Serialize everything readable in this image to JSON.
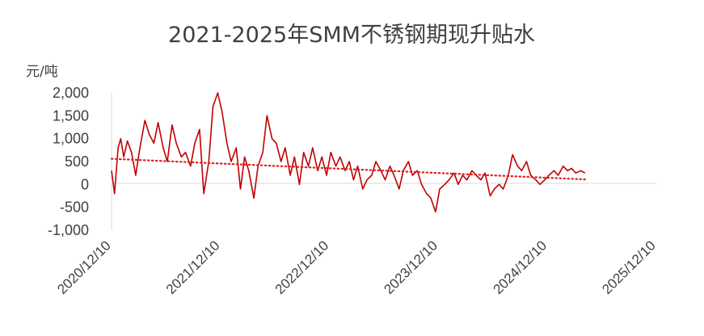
{
  "chart_data": {
    "type": "line",
    "title": "2021-2025年SMM不锈钢期现升贴水",
    "unit_label": "元/吨",
    "y_ticks": [
      "2,000",
      "1,500",
      "1,000",
      "500",
      "0",
      "-500",
      "-1,000"
    ],
    "y_tick_values": [
      2000,
      1500,
      1000,
      500,
      0,
      -500,
      -1000
    ],
    "ylim": [
      -1000,
      2000
    ],
    "x_ticks": [
      "2020/12/10",
      "2021/12/10",
      "2022/12/10",
      "2023/12/10",
      "2024/12/10",
      "2025/12/10"
    ],
    "xlim": [
      "2020/12/10",
      "2025/12/10"
    ],
    "series": [
      {
        "color": "#C00000",
        "points": [
          [
            "2020/12/10",
            300
          ],
          [
            "2020/12/20",
            -200
          ],
          [
            "2021/01/01",
            800
          ],
          [
            "2021/01/10",
            1000
          ],
          [
            "2021/01/20",
            600
          ],
          [
            "2021/02/01",
            950
          ],
          [
            "2021/02/15",
            700
          ],
          [
            "2021/03/01",
            200
          ],
          [
            "2021/03/15",
            800
          ],
          [
            "2021/04/01",
            1400
          ],
          [
            "2021/04/15",
            1100
          ],
          [
            "2021/05/01",
            900
          ],
          [
            "2021/05/15",
            1350
          ],
          [
            "2021/06/01",
            800
          ],
          [
            "2021/06/15",
            500
          ],
          [
            "2021/07/01",
            1300
          ],
          [
            "2021/07/15",
            900
          ],
          [
            "2021/08/01",
            600
          ],
          [
            "2021/08/15",
            700
          ],
          [
            "2021/09/01",
            400
          ],
          [
            "2021/09/15",
            900
          ],
          [
            "2021/10/01",
            1200
          ],
          [
            "2021/10/15",
            -200
          ],
          [
            "2021/11/01",
            500
          ],
          [
            "2021/11/15",
            1700
          ],
          [
            "2021/12/01",
            2000
          ],
          [
            "2021/12/15",
            1600
          ],
          [
            "2022/01/01",
            900
          ],
          [
            "2022/01/15",
            500
          ],
          [
            "2022/02/01",
            800
          ],
          [
            "2022/02/15",
            -100
          ],
          [
            "2022/03/01",
            600
          ],
          [
            "2022/03/15",
            300
          ],
          [
            "2022/04/01",
            -300
          ],
          [
            "2022/04/15",
            400
          ],
          [
            "2022/05/01",
            700
          ],
          [
            "2022/05/15",
            1500
          ],
          [
            "2022/06/01",
            1000
          ],
          [
            "2022/06/15",
            900
          ],
          [
            "2022/07/01",
            500
          ],
          [
            "2022/07/15",
            800
          ],
          [
            "2022/08/01",
            200
          ],
          [
            "2022/08/15",
            600
          ],
          [
            "2022/09/01",
            0
          ],
          [
            "2022/09/15",
            700
          ],
          [
            "2022/10/01",
            400
          ],
          [
            "2022/10/15",
            800
          ],
          [
            "2022/11/01",
            300
          ],
          [
            "2022/11/15",
            600
          ],
          [
            "2022/12/01",
            200
          ],
          [
            "2022/12/15",
            700
          ],
          [
            "2023/01/01",
            400
          ],
          [
            "2023/01/15",
            600
          ],
          [
            "2023/02/01",
            300
          ],
          [
            "2023/02/15",
            500
          ],
          [
            "2023/03/01",
            100
          ],
          [
            "2023/03/15",
            400
          ],
          [
            "2023/04/01",
            -100
          ],
          [
            "2023/04/15",
            100
          ],
          [
            "2023/05/01",
            200
          ],
          [
            "2023/05/15",
            500
          ],
          [
            "2023/06/01",
            300
          ],
          [
            "2023/06/15",
            100
          ],
          [
            "2023/07/01",
            400
          ],
          [
            "2023/07/15",
            200
          ],
          [
            "2023/08/01",
            -100
          ],
          [
            "2023/08/15",
            300
          ],
          [
            "2023/09/01",
            500
          ],
          [
            "2023/09/15",
            200
          ],
          [
            "2023/10/01",
            300
          ],
          [
            "2023/10/15",
            0
          ],
          [
            "2023/11/01",
            -200
          ],
          [
            "2023/11/15",
            -300
          ],
          [
            "2023/12/01",
            -600
          ],
          [
            "2023/12/15",
            -100
          ],
          [
            "2024/01/01",
            0
          ],
          [
            "2024/01/15",
            100
          ],
          [
            "2024/02/01",
            250
          ],
          [
            "2024/02/15",
            0
          ],
          [
            "2024/03/01",
            200
          ],
          [
            "2024/03/15",
            100
          ],
          [
            "2024/04/01",
            300
          ],
          [
            "2024/04/15",
            200
          ],
          [
            "2024/05/01",
            100
          ],
          [
            "2024/05/15",
            250
          ],
          [
            "2024/06/01",
            -250
          ],
          [
            "2024/06/15",
            -100
          ],
          [
            "2024/07/01",
            0
          ],
          [
            "2024/07/15",
            -100
          ],
          [
            "2024/08/01",
            200
          ],
          [
            "2024/08/15",
            650
          ],
          [
            "2024/09/01",
            400
          ],
          [
            "2024/09/15",
            300
          ],
          [
            "2024/10/01",
            500
          ],
          [
            "2024/10/15",
            200
          ],
          [
            "2024/11/01",
            100
          ],
          [
            "2024/11/15",
            0
          ],
          [
            "2024/12/01",
            100
          ],
          [
            "2024/12/15",
            200
          ],
          [
            "2025/01/01",
            300
          ],
          [
            "2025/01/15",
            200
          ],
          [
            "2025/02/01",
            400
          ],
          [
            "2025/02/15",
            300
          ],
          [
            "2025/03/01",
            350
          ],
          [
            "2025/03/15",
            250
          ],
          [
            "2025/04/01",
            300
          ],
          [
            "2025/04/15",
            250
          ]
        ]
      },
      {
        "type": "trendline",
        "style": "dotted",
        "color": "#E02020",
        "points": [
          [
            "2020/12/10",
            560
          ],
          [
            "2025/04/15",
            110
          ]
        ]
      }
    ],
    "grid": false,
    "legend": "none"
  }
}
